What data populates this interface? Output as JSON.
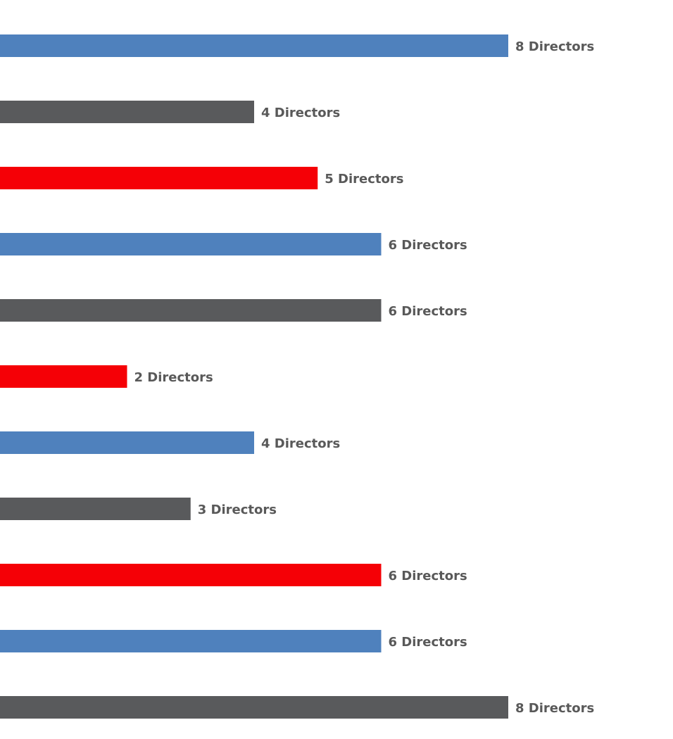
{
  "chart_data": {
    "type": "bar",
    "orientation": "horizontal",
    "values": [
      8,
      4,
      5,
      6,
      6,
      2,
      4,
      3,
      6,
      6,
      8
    ],
    "value_labels": [
      "8 Directors",
      "4 Directors",
      "5 Directors",
      "6 Directors",
      "6 Directors",
      "2 Directors",
      "4 Directors",
      "3 Directors",
      "6 Directors",
      "6 Directors",
      "8 Directors"
    ],
    "colors": [
      "#4f81bd",
      "#595a5c",
      "#f50006",
      "#4f81bd",
      "#595a5c",
      "#f50006",
      "#4f81bd",
      "#595a5c",
      "#f50006",
      "#4f81bd",
      "#595a5c"
    ]
  }
}
